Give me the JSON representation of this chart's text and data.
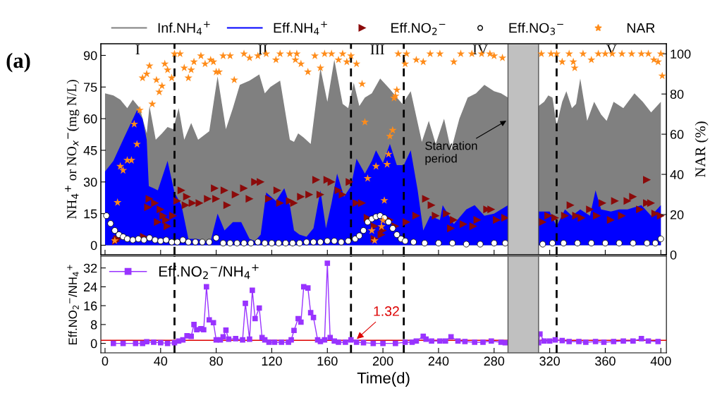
{
  "chart_data": [
    {
      "type": "area",
      "xlim": [
        -3,
        404
      ],
      "xticks": [
        0,
        40,
        80,
        120,
        160,
        200,
        240,
        280,
        320,
        360,
        400
      ],
      "ylim": [
        -4.5,
        95.5
      ],
      "yticks": [
        0,
        15,
        30,
        45,
        60,
        75,
        90
      ],
      "y2lim": [
        0,
        105
      ],
      "y2ticks": [
        0,
        20,
        40,
        60,
        80,
        100
      ],
      "ylabel": "NH$_{4}$$^{+}$ or NO$_{x}$$^{−}$(mg N/L)",
      "y2label": "NAR (%)",
      "tick_labels": "y",
      "legend": "top",
      "series": [
        {
          "name": "Inf.NH$_{4}$$^{+}$",
          "type": "area",
          "color": "#808080",
          "x": [
            0,
            6,
            11,
            16,
            20,
            25,
            30,
            32,
            36.5,
            41,
            45,
            49,
            53,
            57,
            62,
            67,
            75,
            81,
            87,
            92,
            97,
            104,
            111,
            115,
            119,
            126,
            133,
            136,
            139,
            143,
            148,
            155,
            160,
            165,
            171,
            175,
            179,
            183,
            187,
            192,
            198,
            205,
            210,
            214,
            220,
            228,
            233,
            238,
            244,
            249,
            255,
            261,
            267,
            273,
            280,
            285,
            290,
            312,
            316,
            319,
            322,
            325,
            329,
            332,
            336,
            339,
            342,
            347,
            352,
            357,
            361,
            366,
            373,
            381,
            387,
            393,
            400
          ],
          "values": [
            72,
            71,
            69,
            65,
            69,
            65,
            53,
            66,
            50,
            53,
            56,
            55,
            65,
            50,
            58,
            50,
            54,
            80,
            55,
            65,
            76,
            78,
            81,
            72,
            75,
            78,
            50,
            49,
            53,
            51,
            48,
            84,
            68,
            88,
            67,
            65,
            77,
            66,
            70,
            72,
            79,
            74,
            70,
            67,
            73,
            49,
            59,
            48,
            60,
            45,
            60,
            70,
            72,
            76,
            73,
            72,
            70,
            66,
            68,
            71,
            70,
            57,
            68,
            73,
            65,
            67,
            79,
            59,
            68,
            62,
            59,
            68,
            65,
            72,
            68,
            63,
            68
          ]
        },
        {
          "name": "Eff.NH$_{4}$$^{+}$",
          "type": "area",
          "color": "#0000ff",
          "x": [
            0,
            6,
            13,
            18,
            23,
            27,
            30,
            31.5,
            35,
            38,
            45,
            50,
            55,
            60,
            66,
            72,
            76,
            81,
            86,
            92,
            98,
            104,
            108,
            112,
            116,
            123,
            129,
            133,
            136,
            140,
            145,
            150,
            155,
            159,
            163,
            167,
            172,
            177,
            181,
            187,
            192,
            195,
            200,
            205,
            210,
            215,
            220,
            225,
            229,
            234,
            241,
            243,
            251,
            260,
            266,
            273,
            280,
            290,
            312,
            320,
            325,
            331,
            336,
            342,
            349,
            353,
            357,
            364,
            370,
            376,
            386,
            393,
            400
          ],
          "values": [
            35,
            40,
            50,
            57,
            64,
            60,
            50,
            28,
            27,
            26,
            40,
            25,
            19,
            3,
            3,
            2,
            2,
            15,
            7,
            11,
            11,
            3,
            2,
            5,
            25,
            21,
            27,
            19,
            7,
            5,
            4,
            8,
            26,
            8,
            20,
            34,
            23,
            28,
            41,
            34,
            40,
            45,
            39,
            48,
            38,
            38,
            45,
            26,
            7,
            14,
            12,
            19,
            10,
            17,
            19,
            14,
            15,
            19,
            16,
            16,
            9,
            17,
            14,
            17,
            14,
            26,
            17,
            16,
            17,
            17,
            19,
            14,
            19
          ]
        },
        {
          "name": "Eff.NO$_{2}$$^{−}$",
          "type": "scatter",
          "marker": "triangle",
          "color": "#8b0a0a",
          "x": [
            8,
            9,
            28,
            31,
            32,
            36,
            38,
            40,
            42,
            44,
            45,
            49,
            52,
            55,
            58,
            59,
            63,
            68,
            74,
            79,
            80,
            86,
            88,
            94,
            100,
            104,
            108,
            112,
            118,
            124,
            126,
            133,
            136,
            141,
            147,
            152,
            155,
            160,
            163,
            168,
            171,
            176,
            181,
            185,
            189,
            194,
            194,
            199,
            200,
            205,
            209,
            217,
            224,
            231,
            235,
            238,
            246,
            249,
            251,
            258,
            265,
            268,
            275,
            278,
            282,
            288,
            315,
            319,
            324,
            331,
            335,
            339,
            343,
            349,
            354,
            358,
            364,
            367,
            372,
            376,
            380,
            385,
            390,
            390,
            393,
            396,
            400
          ],
          "values": [
            2,
            3,
            4,
            18,
            22,
            20,
            11,
            17,
            14,
            12,
            9,
            14,
            21,
            26,
            19,
            23,
            20,
            20,
            22,
            27,
            22,
            26,
            19,
            24,
            27,
            22,
            30,
            30,
            22,
            26,
            20,
            21,
            20,
            23,
            24,
            31,
            24,
            31,
            30,
            26,
            24,
            30,
            20,
            20,
            13,
            9,
            3,
            5,
            7,
            12,
            9,
            11,
            14,
            22,
            19,
            14,
            15,
            8,
            12,
            10,
            9,
            12,
            17,
            17,
            12,
            13,
            11,
            14,
            13,
            14,
            19,
            14,
            13,
            17,
            14,
            20,
            12,
            21,
            14,
            21,
            23,
            17,
            20,
            31,
            20,
            15,
            14
          ]
        },
        {
          "name": "Eff.NO$_{3}$$^{−}$",
          "type": "scatter",
          "marker": "circle",
          "color": "#ffffff",
          "x": [
            1,
            4,
            7,
            10,
            13,
            16,
            20,
            24,
            28,
            32,
            36,
            40,
            44,
            48,
            52,
            56,
            60,
            65,
            70,
            75,
            80,
            85,
            90,
            95,
            100,
            105,
            110,
            115,
            120,
            125,
            130,
            135,
            140,
            145,
            150,
            155,
            160,
            165,
            170,
            175,
            180,
            183,
            186,
            189,
            192,
            195,
            198,
            201,
            204,
            207,
            210,
            213,
            216,
            222,
            230,
            240,
            250,
            260,
            270,
            280,
            288,
            315,
            322,
            330,
            340,
            350,
            360,
            370,
            380,
            390,
            396,
            400
          ],
          "values": [
            14,
            10.3,
            7,
            5,
            4,
            3,
            2.5,
            3,
            2.5,
            3.5,
            2.5,
            2,
            2.5,
            1.5,
            1.5,
            2.5,
            1.5,
            1.5,
            1.5,
            1.5,
            3.5,
            1,
            1,
            1,
            1,
            1,
            1.5,
            1,
            1,
            1,
            1,
            1,
            1,
            1.5,
            1.5,
            1.5,
            2,
            2,
            1.5,
            2,
            3,
            4.5,
            7,
            11,
            12.5,
            13.5,
            14,
            13,
            11,
            8,
            5,
            3,
            2,
            1.5,
            1,
            1,
            1,
            0.5,
            0.5,
            1,
            1,
            0.5,
            1,
            1,
            1,
            1,
            1,
            1,
            1,
            1,
            1,
            3
          ]
        },
        {
          "name": "NAR",
          "type": "scatter",
          "marker": "star",
          "axis": "y2",
          "color": "#ff8c1a",
          "x": [
            7,
            9,
            11,
            13,
            16,
            19,
            21,
            23,
            25,
            27,
            30,
            32,
            34,
            37,
            39,
            41,
            43,
            45,
            48,
            50,
            54,
            57,
            60,
            62,
            64,
            69,
            72,
            76,
            78,
            80,
            82,
            85,
            90,
            93,
            100,
            104,
            110,
            116,
            123,
            126,
            133,
            137,
            138,
            141,
            146,
            151,
            155,
            158,
            163,
            168,
            171,
            174,
            177,
            181,
            185,
            187,
            189,
            192,
            194,
            195,
            199,
            200,
            201,
            203,
            204,
            205,
            207,
            208,
            209,
            210,
            211,
            216,
            217,
            224,
            229,
            234,
            241,
            251,
            256,
            264,
            271,
            277,
            280,
            286,
            314,
            321,
            325,
            329,
            334,
            337,
            338,
            344,
            350,
            355,
            360,
            365,
            372,
            379,
            386,
            391,
            395,
            398,
            400,
            401
          ],
          "values": [
            7,
            26,
            44,
            42,
            47,
            47,
            65,
            55,
            72,
            88,
            90,
            94,
            75,
            87,
            81,
            84,
            95,
            92,
            88,
            100,
            100,
            93,
            88,
            92,
            96,
            99,
            95,
            97,
            96,
            91,
            91,
            99,
            99,
            87,
            100,
            98,
            99,
            100,
            97,
            100,
            100,
            97,
            100,
            95,
            91,
            99,
            93,
            100,
            100,
            97,
            100,
            96,
            99,
            95,
            85,
            66,
            38,
            12,
            7,
            44,
            14,
            17,
            27,
            45,
            50,
            59,
            62,
            78,
            79,
            82,
            100,
            95,
            100,
            97,
            96,
            100,
            100,
            96,
            100,
            100,
            100,
            100,
            99,
            98,
            100,
            100,
            100,
            96,
            100,
            96,
            93,
            100,
            97,
            100,
            100,
            100,
            100,
            100,
            100,
            100,
            97,
            96,
            100,
            89
          ]
        }
      ],
      "ref_lines": [
        {
          "axis": "x",
          "value": 50,
          "line_style": "dashed",
          "color": "#000000"
        },
        {
          "axis": "x",
          "value": 177,
          "line_style": "dashed",
          "color": "#000000"
        },
        {
          "axis": "x",
          "value": 215,
          "line_style": "dashed",
          "color": "#000000"
        },
        {
          "axis": "x",
          "value": 325,
          "line_style": "dashed",
          "color": "#000000"
        }
      ],
      "bands": [
        {
          "axis": "x",
          "from": 290,
          "to": 312,
          "color": "#c0c0c0",
          "label": "Starvation\nperiod"
        }
      ],
      "annotations": [
        "(a)",
        "I",
        "II",
        "III",
        "IV",
        "V"
      ]
    },
    {
      "type": "line",
      "xlim": [
        -3,
        404
      ],
      "xticks": [
        0,
        40,
        80,
        120,
        160,
        200,
        240,
        280,
        320,
        360,
        400
      ],
      "ylim": [
        -4,
        37
      ],
      "yticks": [
        0,
        8,
        16,
        24,
        32
      ],
      "xlabel": "Time(d)",
      "ylabel": "Eff.NO$_{2}$$^{−}$/NH$_{4}$$^{+}$",
      "legend": "top left",
      "series": [
        {
          "name": "Eff.NO$_{2}$$^{−}$/NH$_{4}$$^{+}$",
          "marker": "square",
          "color": "#9933ff",
          "x": [
            6,
            13,
            22,
            27,
            30,
            35,
            40,
            45,
            50,
            53,
            56,
            59,
            62,
            64,
            66,
            69,
            71,
            73,
            75,
            78,
            80,
            83,
            85,
            87,
            89,
            94,
            99,
            101,
            104,
            106,
            108,
            111,
            113,
            115,
            118,
            122,
            127,
            132,
            134,
            136,
            139,
            141,
            143,
            146,
            148,
            150,
            153,
            155,
            158,
            160,
            162,
            165,
            168,
            173,
            177,
            181,
            186,
            193,
            200,
            209,
            216,
            221,
            224,
            229,
            231,
            235,
            241,
            245,
            249,
            254,
            259,
            266,
            272,
            278,
            285,
            288,
            312,
            313,
            316,
            320,
            324,
            329,
            334,
            341,
            346,
            353,
            359,
            366,
            373,
            380,
            386,
            391,
            398
          ],
          "values": [
            0,
            0,
            0,
            0,
            0.7,
            0.5,
            0.3,
            0,
            0.3,
            1,
            1.5,
            3.2,
            3,
            8,
            5.8,
            6.2,
            5.8,
            24,
            10,
            8.8,
            1.5,
            1.5,
            2.8,
            5.6,
            1.8,
            2,
            1.5,
            17,
            1.8,
            22.5,
            10.5,
            15,
            2.5,
            1.5,
            0.5,
            0.5,
            0.5,
            0.5,
            1.5,
            5.5,
            10.5,
            9,
            24,
            23.5,
            13,
            11,
            1.5,
            0.8,
            1.5,
            34,
            2.5,
            1,
            0.5,
            0.5,
            1.5,
            0.5,
            0.3,
            0,
            0,
            0,
            0.5,
            0.5,
            1,
            3,
            1.8,
            1,
            1,
            1,
            2.8,
            1,
            0.8,
            0.5,
            0.5,
            1,
            0.5,
            0.3,
            0.3,
            4,
            1,
            1,
            1.5,
            1.2,
            0.8,
            0.8,
            0.5,
            0.8,
            0.5,
            0.8,
            1,
            1,
            2,
            1,
            0.8
          ]
        }
      ],
      "ref_lines": [
        {
          "axis": "x",
          "value": 50,
          "line_style": "dashed",
          "color": "#000000"
        },
        {
          "axis": "x",
          "value": 177,
          "line_style": "dashed",
          "color": "#000000"
        },
        {
          "axis": "x",
          "value": 215,
          "line_style": "dashed",
          "color": "#000000"
        },
        {
          "axis": "x",
          "value": 325,
          "line_style": "dashed",
          "color": "#000000"
        },
        {
          "axis": "y",
          "value": 1.32,
          "label": "1.32",
          "line_style": "solid",
          "color": "#dd0000"
        }
      ],
      "bands": [
        {
          "axis": "x",
          "from": 290,
          "to": 312,
          "color": "#c0c0c0"
        }
      ]
    }
  ]
}
